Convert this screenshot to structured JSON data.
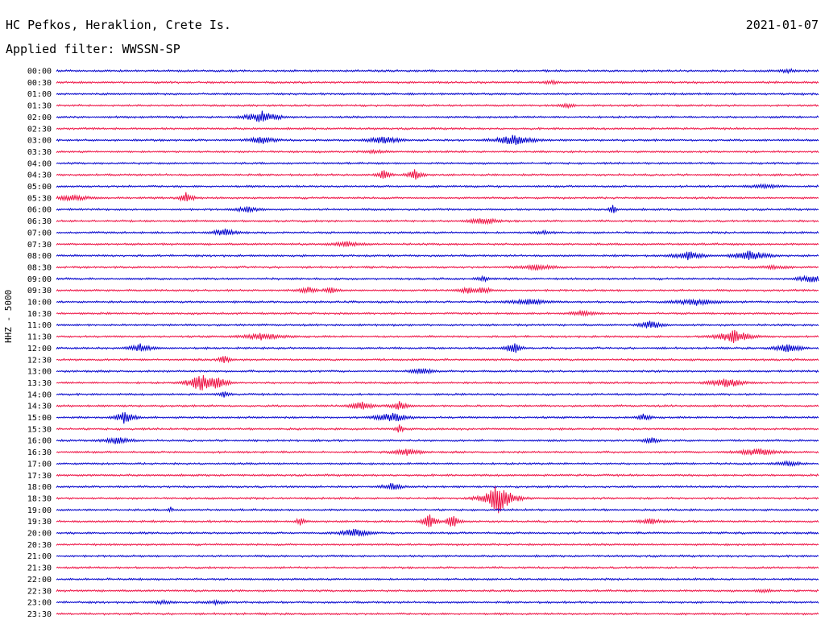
{
  "header": {
    "station": "HC Pefkos, Heraklion, Crete Is.",
    "date": "2021-01-07",
    "filter": "Applied filter: WWSSN-SP"
  },
  "axis": {
    "ylabel": "HHZ - 5000"
  },
  "colors": {
    "trace_even": "#0000cc",
    "trace_odd": "#ee1144",
    "text": "#000000",
    "background": "#ffffff"
  },
  "chart_data": {
    "type": "line",
    "title": "HC Pefkos, Heraklion, Crete Is.",
    "subtitle": "Applied filter: WWSSN-SP",
    "ylabel": "HHZ - 5000",
    "date": "2021-01-07",
    "trace_minutes": 30,
    "series": [
      {
        "time": "00:00",
        "events": [
          {
            "pos": 0.96,
            "amp": 3,
            "width": 0.02
          }
        ]
      },
      {
        "time": "00:30",
        "events": [
          {
            "pos": 0.65,
            "amp": 3,
            "width": 0.015
          }
        ]
      },
      {
        "time": "01:00",
        "events": []
      },
      {
        "time": "01:30",
        "events": [
          {
            "pos": 0.67,
            "amp": 3,
            "width": 0.015
          }
        ]
      },
      {
        "time": "02:00",
        "events": [
          {
            "pos": 0.27,
            "amp": 8,
            "width": 0.02
          }
        ]
      },
      {
        "time": "02:30",
        "events": []
      },
      {
        "time": "03:00",
        "events": [
          {
            "pos": 0.27,
            "amp": 5,
            "width": 0.02
          },
          {
            "pos": 0.43,
            "amp": 6,
            "width": 0.02
          },
          {
            "pos": 0.6,
            "amp": 7,
            "width": 0.025
          }
        ]
      },
      {
        "time": "03:30",
        "events": [
          {
            "pos": 0.42,
            "amp": 3,
            "width": 0.02
          }
        ]
      },
      {
        "time": "04:00",
        "events": []
      },
      {
        "time": "04:30",
        "events": [
          {
            "pos": 0.43,
            "amp": 8,
            "width": 0.008
          },
          {
            "pos": 0.47,
            "amp": 7,
            "width": 0.01
          }
        ]
      },
      {
        "time": "05:00",
        "events": [
          {
            "pos": 0.93,
            "amp": 3,
            "width": 0.03
          }
        ]
      },
      {
        "time": "05:30",
        "events": [
          {
            "pos": 0.02,
            "amp": 4,
            "width": 0.03
          },
          {
            "pos": 0.17,
            "amp": 9,
            "width": 0.008
          }
        ]
      },
      {
        "time": "06:00",
        "events": [
          {
            "pos": 0.25,
            "amp": 4,
            "width": 0.02
          },
          {
            "pos": 0.73,
            "amp": 8,
            "width": 0.004
          }
        ]
      },
      {
        "time": "06:30",
        "events": [
          {
            "pos": 0.56,
            "amp": 5,
            "width": 0.02
          }
        ]
      },
      {
        "time": "07:00",
        "events": [
          {
            "pos": 0.22,
            "amp": 6,
            "width": 0.015
          },
          {
            "pos": 0.64,
            "amp": 3,
            "width": 0.02
          }
        ]
      },
      {
        "time": "07:30",
        "events": [
          {
            "pos": 0.38,
            "amp": 4,
            "width": 0.025
          }
        ]
      },
      {
        "time": "08:00",
        "events": [
          {
            "pos": 0.83,
            "amp": 6,
            "width": 0.02
          },
          {
            "pos": 0.91,
            "amp": 8,
            "width": 0.02
          }
        ]
      },
      {
        "time": "08:30",
        "events": [
          {
            "pos": 0.63,
            "amp": 4,
            "width": 0.03
          },
          {
            "pos": 0.94,
            "amp": 3,
            "width": 0.03
          }
        ]
      },
      {
        "time": "09:00",
        "events": [
          {
            "pos": 0.56,
            "amp": 4,
            "width": 0.01
          },
          {
            "pos": 0.99,
            "amp": 5,
            "width": 0.02
          }
        ]
      },
      {
        "time": "09:30",
        "events": [
          {
            "pos": 0.33,
            "amp": 5,
            "width": 0.012
          },
          {
            "pos": 0.36,
            "amp": 4,
            "width": 0.012
          },
          {
            "pos": 0.54,
            "amp": 5,
            "width": 0.012
          },
          {
            "pos": 0.56,
            "amp": 5,
            "width": 0.012
          }
        ]
      },
      {
        "time": "10:00",
        "events": [
          {
            "pos": 0.62,
            "amp": 4,
            "width": 0.03
          },
          {
            "pos": 0.84,
            "amp": 5,
            "width": 0.03
          }
        ]
      },
      {
        "time": "10:30",
        "events": [
          {
            "pos": 0.69,
            "amp": 4,
            "width": 0.02
          }
        ]
      },
      {
        "time": "11:00",
        "events": [
          {
            "pos": 0.78,
            "amp": 6,
            "width": 0.015
          }
        ]
      },
      {
        "time": "11:30",
        "events": [
          {
            "pos": 0.27,
            "amp": 5,
            "width": 0.03
          },
          {
            "pos": 0.89,
            "amp": 9,
            "width": 0.02
          }
        ]
      },
      {
        "time": "12:00",
        "events": [
          {
            "pos": 0.11,
            "amp": 6,
            "width": 0.015
          },
          {
            "pos": 0.6,
            "amp": 9,
            "width": 0.008
          },
          {
            "pos": 0.96,
            "amp": 7,
            "width": 0.015
          }
        ]
      },
      {
        "time": "12:30",
        "events": [
          {
            "pos": 0.22,
            "amp": 6,
            "width": 0.008
          }
        ]
      },
      {
        "time": "13:00",
        "events": [
          {
            "pos": 0.48,
            "amp": 5,
            "width": 0.015
          }
        ]
      },
      {
        "time": "13:30",
        "events": [
          {
            "pos": 0.19,
            "amp": 12,
            "width": 0.015
          },
          {
            "pos": 0.21,
            "amp": 11,
            "width": 0.012
          },
          {
            "pos": 0.88,
            "amp": 7,
            "width": 0.02
          }
        ]
      },
      {
        "time": "14:00",
        "events": [
          {
            "pos": 0.22,
            "amp": 4,
            "width": 0.01
          }
        ]
      },
      {
        "time": "14:30",
        "events": [
          {
            "pos": 0.4,
            "amp": 6,
            "width": 0.015
          },
          {
            "pos": 0.45,
            "amp": 6,
            "width": 0.012
          }
        ]
      },
      {
        "time": "15:00",
        "events": [
          {
            "pos": 0.09,
            "amp": 10,
            "width": 0.01
          },
          {
            "pos": 0.44,
            "amp": 7,
            "width": 0.02
          },
          {
            "pos": 0.77,
            "amp": 5,
            "width": 0.01
          }
        ]
      },
      {
        "time": "15:30",
        "events": [
          {
            "pos": 0.45,
            "amp": 6,
            "width": 0.006
          }
        ]
      },
      {
        "time": "16:00",
        "events": [
          {
            "pos": 0.08,
            "amp": 5,
            "width": 0.02
          },
          {
            "pos": 0.78,
            "amp": 5,
            "width": 0.012
          }
        ]
      },
      {
        "time": "16:30",
        "events": [
          {
            "pos": 0.46,
            "amp": 5,
            "width": 0.02
          },
          {
            "pos": 0.92,
            "amp": 5,
            "width": 0.03
          }
        ]
      },
      {
        "time": "17:00",
        "events": [
          {
            "pos": 0.96,
            "amp": 4,
            "width": 0.02
          }
        ]
      },
      {
        "time": "17:30",
        "events": []
      },
      {
        "time": "18:00",
        "events": [
          {
            "pos": 0.44,
            "amp": 5,
            "width": 0.015
          }
        ]
      },
      {
        "time": "18:30",
        "events": [
          {
            "pos": 0.58,
            "amp": 20,
            "width": 0.015
          }
        ]
      },
      {
        "time": "19:00",
        "events": [
          {
            "pos": 0.15,
            "amp": 4,
            "width": 0.004
          }
        ]
      },
      {
        "time": "19:30",
        "events": [
          {
            "pos": 0.32,
            "amp": 6,
            "width": 0.006
          },
          {
            "pos": 0.49,
            "amp": 10,
            "width": 0.008
          },
          {
            "pos": 0.52,
            "amp": 9,
            "width": 0.008
          },
          {
            "pos": 0.78,
            "amp": 4,
            "width": 0.02
          }
        ]
      },
      {
        "time": "20:00",
        "events": [
          {
            "pos": 0.39,
            "amp": 6,
            "width": 0.02
          }
        ]
      },
      {
        "time": "20:30",
        "events": []
      },
      {
        "time": "21:00",
        "events": []
      },
      {
        "time": "21:30",
        "events": []
      },
      {
        "time": "22:00",
        "events": []
      },
      {
        "time": "22:30",
        "events": [
          {
            "pos": 0.93,
            "amp": 3,
            "width": 0.015
          }
        ]
      },
      {
        "time": "23:00",
        "events": [
          {
            "pos": 0.14,
            "amp": 3,
            "width": 0.02
          },
          {
            "pos": 0.21,
            "amp": 3,
            "width": 0.02
          }
        ]
      },
      {
        "time": "23:30",
        "events": []
      }
    ]
  }
}
